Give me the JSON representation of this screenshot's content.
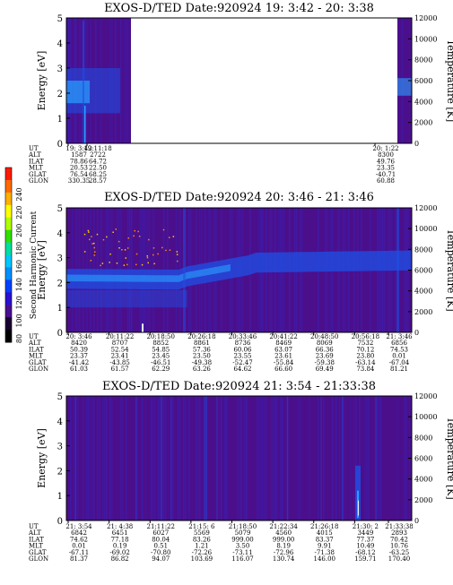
{
  "colors": {
    "background_low": "#4b0f8c",
    "background_mid": "#3a1fb0",
    "band": "#1e50e6",
    "band_core": "#2aa0ff",
    "spike": "#e8f4ff",
    "harmonic_dot": "#ff8800"
  },
  "colorbar": {
    "label": "Second Harmonic Current",
    "ticks": [
      "240",
      "220",
      "200",
      "180",
      "160",
      "140",
      "120",
      "100",
      "80"
    ],
    "colors": [
      "#ff1a00",
      "#ff6a00",
      "#ffb000",
      "#ffff00",
      "#b0ff00",
      "#30e000",
      "#00e0a0",
      "#00c8ff",
      "#0090ff",
      "#0040ff",
      "#2a10d0",
      "#4a0f90",
      "#1a0030",
      "#000000"
    ]
  },
  "chart_data": [
    {
      "type": "heatmap",
      "title": "EXOS-D/TED   Date:920924  19: 3:42 - 20: 3:38",
      "ylabel": "Energy [eV]",
      "y2label": "Temperature [K]",
      "y_ticks": [
        "0",
        "1",
        "2",
        "3",
        "4",
        "5"
      ],
      "y2_ticks": [
        "0",
        "2000",
        "4000",
        "6000",
        "8000",
        "10000",
        "12000"
      ],
      "ylim": [
        0,
        5
      ],
      "y2lim": [
        0,
        12000
      ],
      "data_gap": [
        "19:11:18",
        "20: 1:22"
      ],
      "ephemeris": {
        "labels": [
          "UT",
          "ALT",
          "ILAT",
          "MLT",
          "GLAT",
          "GLON"
        ],
        "columns": [
          {
            "UT": "19: 3:42",
            "ALT": "1587",
            "ILAT": "78.86",
            "MLT": "20.53",
            "GLAT": "76.54",
            "GLON": "330.35"
          },
          {
            "UT": "19:11:18",
            "ALT": "2722",
            "ILAT": "64.72",
            "MLT": "22.50",
            "GLAT": "68.25",
            "GLON": "28.57"
          },
          {
            "UT": "20: 1:22",
            "ALT": "8300",
            "ILAT": "49.76",
            "MLT": "23.35",
            "GLAT": "-40.71",
            "GLON": "60.88"
          }
        ]
      }
    },
    {
      "type": "heatmap",
      "title": "EXOS-D/TED   Date:920924  20: 3:46 - 21: 3:46",
      "ylabel": "Energy [eV]",
      "y2label": "Temperature [K]",
      "y_ticks": [
        "0",
        "1",
        "2",
        "3",
        "4",
        "5"
      ],
      "y2_ticks": [
        "0",
        "2000",
        "4000",
        "6000",
        "8000",
        "10000",
        "12000"
      ],
      "ylim": [
        0,
        5
      ],
      "y2lim": [
        0,
        12000
      ],
      "ephemeris": {
        "labels": [
          "UT",
          "ALT",
          "ILAT",
          "MLT",
          "GLAT",
          "GLON"
        ],
        "columns": [
          {
            "UT": "20: 3:46",
            "ALT": "8420",
            "ILAT": "50.39",
            "MLT": "23.37",
            "GLAT": "-41.42",
            "GLON": "61.03"
          },
          {
            "UT": "20:11:22",
            "ALT": "8707",
            "ILAT": "52.54",
            "MLT": "23.41",
            "GLAT": "-43.85",
            "GLON": "61.57"
          },
          {
            "UT": "20:18:50",
            "ALT": "8852",
            "ILAT": "54.85",
            "MLT": "23.45",
            "GLAT": "-46.51",
            "GLON": "62.29"
          },
          {
            "UT": "20:26:18",
            "ALT": "8861",
            "ILAT": "57.36",
            "MLT": "23.50",
            "GLAT": "-49.38",
            "GLON": "63.26"
          },
          {
            "UT": "20:33:46",
            "ALT": "8736",
            "ILAT": "60.06",
            "MLT": "23.55",
            "GLAT": "-52.47",
            "GLON": "64.62"
          },
          {
            "UT": "20:41:22",
            "ALT": "8469",
            "ILAT": "63.07",
            "MLT": "23.61",
            "GLAT": "-55.84",
            "GLON": "66.60"
          },
          {
            "UT": "20:48:50",
            "ALT": "8069",
            "ILAT": "66.36",
            "MLT": "23.69",
            "GLAT": "-59.38",
            "GLON": "69.49"
          },
          {
            "UT": "20:56:18",
            "ALT": "7532",
            "ILAT": "70.12",
            "MLT": "23.80",
            "GLAT": "-63.14",
            "GLON": "73.84"
          },
          {
            "UT": "21: 3:46",
            "ALT": "6856",
            "ILAT": "74.53",
            "MLT": "0.01",
            "GLAT": "-67.04",
            "GLON": "81.21"
          }
        ]
      }
    },
    {
      "type": "heatmap",
      "title": "EXOS-D/TED   Date:920924  21: 3:54 - 21:33:38",
      "ylabel": "Energy [eV]",
      "y2label": "Temperature [K]",
      "y_ticks": [
        "0",
        "1",
        "2",
        "3",
        "4",
        "5"
      ],
      "y2_ticks": [
        "0",
        "2000",
        "4000",
        "6000",
        "8000",
        "10000",
        "12000"
      ],
      "ylim": [
        0,
        5
      ],
      "y2lim": [
        0,
        12000
      ],
      "ephemeris": {
        "labels": [
          "UT",
          "ALT",
          "ILAT",
          "MLT",
          "GLAT",
          "GLON"
        ],
        "columns": [
          {
            "UT": "21: 3:54",
            "ALT": "6842",
            "ILAT": "74.62",
            "MLT": "0.01",
            "GLAT": "-67.11",
            "GLON": "81.37"
          },
          {
            "UT": "21: 4:38",
            "ALT": "6451",
            "ILAT": "77.18",
            "MLT": "0.19",
            "GLAT": "-69.02",
            "GLON": "86.82"
          },
          {
            "UT": "21:11:22",
            "ALT": "6027",
            "ILAT": "80.04",
            "MLT": "0.51",
            "GLAT": "-70.80",
            "GLON": "94.07"
          },
          {
            "UT": "21:15: 6",
            "ALT": "5569",
            "ILAT": "83.26",
            "MLT": "1.21",
            "GLAT": "-72.26",
            "GLON": "103.69"
          },
          {
            "UT": "21:18:50",
            "ALT": "5079",
            "ILAT": "999.00",
            "MLT": "3.50",
            "GLAT": "-73.11",
            "GLON": "116.07"
          },
          {
            "UT": "21:22:34",
            "ALT": "4560",
            "ILAT": "999.00",
            "MLT": "8.19",
            "GLAT": "-72.96",
            "GLON": "130.74"
          },
          {
            "UT": "21:26:18",
            "ALT": "4015",
            "ILAT": "83.37",
            "MLT": "9.91",
            "GLAT": "-71.38",
            "GLON": "146.00"
          },
          {
            "UT": "21:30: 2",
            "ALT": "3449",
            "ILAT": "77.37",
            "MLT": "10.49",
            "GLAT": "-68.12",
            "GLON": "159.71"
          },
          {
            "UT": "21:33:38",
            "ALT": "2893",
            "ILAT": "70.42",
            "MLT": "10.76",
            "GLAT": "-63.25",
            "GLON": "170.40"
          }
        ]
      }
    }
  ]
}
